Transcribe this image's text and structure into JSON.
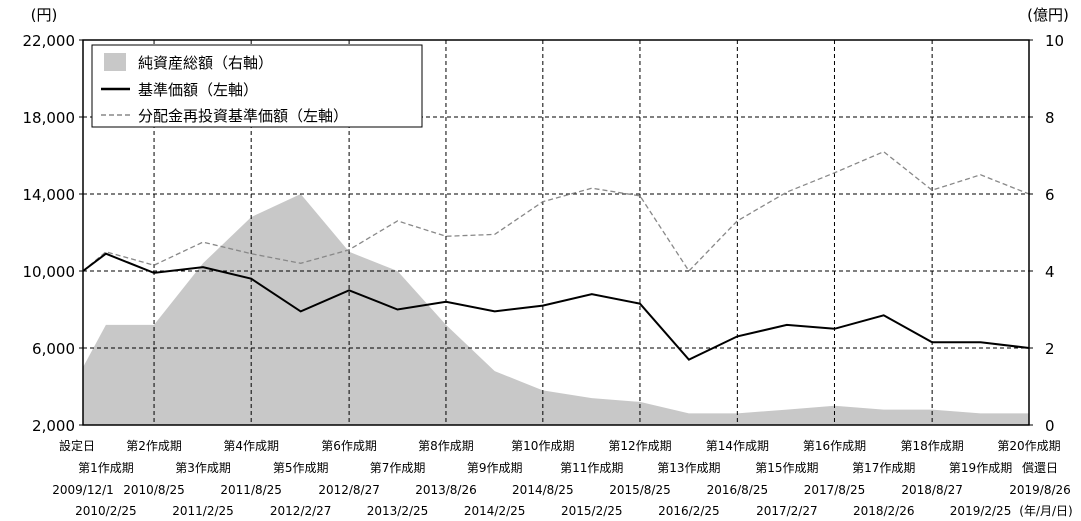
{
  "chart_data": {
    "type": "area+line",
    "left_unit": "(円)",
    "right_unit": "(億円)",
    "y_left": {
      "min": 2000,
      "max": 22000,
      "ticks": [
        "2,000",
        "6,000",
        "10,000",
        "14,000",
        "18,000",
        "22,000"
      ],
      "tick_values": [
        2000,
        6000,
        10000,
        14000,
        18000,
        22000
      ]
    },
    "y_right": {
      "min": 0,
      "max": 10,
      "ticks": [
        "0",
        "2",
        "4",
        "6",
        "8",
        "10"
      ],
      "tick_values": [
        0,
        2,
        4,
        6,
        8,
        10
      ]
    },
    "legend": [
      {
        "label": "純資産総額（右軸）",
        "style": "area",
        "color": "#c8c8c8"
      },
      {
        "label": "基準価額（左軸）",
        "style": "solid",
        "color": "#000000"
      },
      {
        "label": "分配金再投資基準価額（左軸）",
        "style": "dashed",
        "color": "#888888"
      }
    ],
    "x_axis_unit": "(年/月/日)",
    "period_labels_top": [
      "設定日",
      "第2作成期",
      "第4作成期",
      "第6作成期",
      "第8作成期",
      "第10作成期",
      "第12作成期",
      "第14作成期",
      "第16作成期",
      "第18作成期",
      "第20作成期"
    ],
    "period_labels_second": [
      "第1作成期",
      "第3作成期",
      "第5作成期",
      "第7作成期",
      "第9作成期",
      "第11作成期",
      "第13作成期",
      "第15作成期",
      "第17作成期",
      "第19作成期",
      "償還日"
    ],
    "date_labels_third": [
      "2009/12/1",
      "2010/8/25",
      "2011/8/25",
      "2012/8/27",
      "2013/8/26",
      "2014/8/25",
      "2015/8/25",
      "2016/8/25",
      "2017/8/25",
      "2018/8/27",
      "2019/8/26"
    ],
    "date_labels_fourth": [
      "2010/2/25",
      "2011/2/25",
      "2012/2/27",
      "2013/2/25",
      "2014/2/25",
      "2015/2/25",
      "2016/2/25",
      "2017/2/27",
      "2018/2/26",
      "2019/2/25"
    ],
    "x_dates": [
      "2009/12/1",
      "2010/2/25",
      "2010/8/25",
      "2011/2/25",
      "2011/8/25",
      "2012/2/27",
      "2012/8/27",
      "2013/2/25",
      "2013/8/26",
      "2014/2/25",
      "2014/8/25",
      "2015/2/25",
      "2015/8/25",
      "2016/2/25",
      "2016/8/25",
      "2017/2/27",
      "2017/8/25",
      "2018/2/26",
      "2018/8/27",
      "2019/2/25",
      "2019/8/26"
    ],
    "series": [
      {
        "name": "基準価額（左軸）",
        "axis": "left",
        "x": [
          "2009/12/1",
          "2010/2/25",
          "2010/8/25",
          "2011/2/25",
          "2011/8/25",
          "2012/2/27",
          "2012/8/27",
          "2013/2/25",
          "2013/8/26",
          "2014/2/25",
          "2014/8/25",
          "2015/2/25",
          "2015/8/25",
          "2016/2/25",
          "2016/8/25",
          "2017/2/27",
          "2017/8/25",
          "2018/2/26",
          "2018/8/27",
          "2019/2/25",
          "2019/8/26"
        ],
        "values": [
          10000,
          10900,
          9900,
          10200,
          9600,
          7900,
          9000,
          8000,
          8400,
          7900,
          8200,
          8800,
          8300,
          5400,
          6600,
          7200,
          7000,
          7700,
          6300,
          6300,
          6000
        ]
      },
      {
        "name": "分配金再投資基準価額（左軸）",
        "axis": "left",
        "x": [
          "2009/12/1",
          "2010/2/25",
          "2010/8/25",
          "2011/2/25",
          "2011/8/25",
          "2012/2/27",
          "2012/8/27",
          "2013/2/25",
          "2013/8/26",
          "2014/2/25",
          "2014/8/25",
          "2015/2/25",
          "2015/8/25",
          "2016/2/25",
          "2016/8/25",
          "2017/2/27",
          "2017/8/25",
          "2018/2/26",
          "2018/8/27",
          "2019/2/25",
          "2019/8/26"
        ],
        "values": [
          10000,
          11000,
          10300,
          11500,
          10900,
          10400,
          11100,
          12600,
          11800,
          11900,
          13600,
          14300,
          13900,
          10000,
          12600,
          14100,
          15100,
          16200,
          14200,
          15000,
          14000
        ]
      },
      {
        "name": "純資産総額（右軸）",
        "axis": "right",
        "x": [
          "2009/12/1",
          "2010/2/25",
          "2010/8/25",
          "2011/2/25",
          "2011/8/25",
          "2012/2/27",
          "2012/8/27",
          "2013/2/25",
          "2013/8/26",
          "2014/2/25",
          "2014/8/25",
          "2015/2/25",
          "2015/8/25",
          "2016/2/25",
          "2016/8/25",
          "2017/2/27",
          "2017/8/25",
          "2018/2/26",
          "2018/8/27",
          "2019/2/25",
          "2019/8/26"
        ],
        "values": [
          1.5,
          2.6,
          2.6,
          4.2,
          5.4,
          6.0,
          4.5,
          4.0,
          2.6,
          1.4,
          0.9,
          0.7,
          0.6,
          0.3,
          0.3,
          0.4,
          0.5,
          0.4,
          0.4,
          0.3,
          0.3
        ]
      }
    ]
  }
}
